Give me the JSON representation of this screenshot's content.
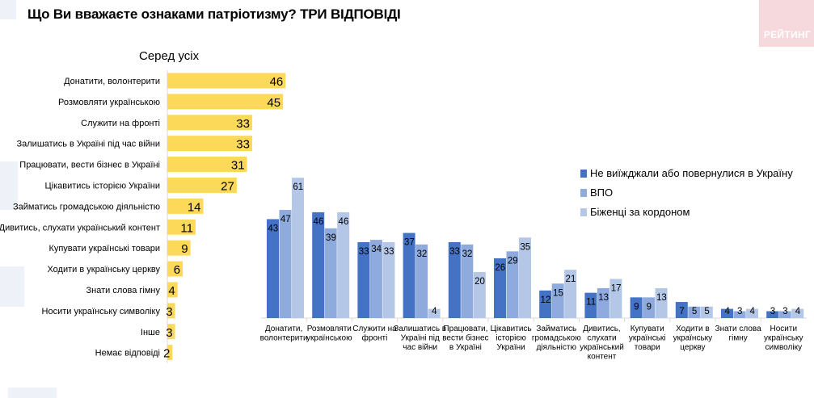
{
  "title": "Що Ви вважаєте ознаками патріотизму? ТРИ ВІДПОВІДІ",
  "brand": "РЕЙТИНГ",
  "colors": {
    "left_bar": "#fdd95a",
    "series": [
      "#4472c4",
      "#8faadc",
      "#b4c7e7"
    ]
  },
  "chart_data": [
    {
      "type": "bar",
      "orientation": "horizontal",
      "title": "Серед усіх",
      "categories": [
        "Донатити, волонтерити",
        "Розмовляти українською",
        "Служити на фронті",
        "Залишатись в Україні під час війни",
        "Працювати, вести бізнес в Україні",
        "Цікавитись історією України",
        "Займатись громадською діяльністю",
        "Дивитись, слухати український контент",
        "Купувати українські товари",
        "Ходити в українську церкву",
        "Знати слова гімну",
        "Носити українську символіку",
        "Інше",
        "Немає відповіді"
      ],
      "values": [
        46,
        45,
        33,
        33,
        31,
        27,
        14,
        11,
        9,
        6,
        4,
        3,
        3,
        2
      ]
    },
    {
      "type": "bar",
      "orientation": "vertical",
      "categories": [
        "Донатити, волонтерити",
        "Розмовляти українською",
        "Служити на фронті",
        "Залишатись в Україні під час війни",
        "Працювати, вести бізнес в Україні",
        "Цікавитись історією України",
        "Займатись громадською діяльністю",
        "Дивитись, слухати український контент",
        "Купувати українські товари",
        "Ходити в українську церкву",
        "Знати слова гімну",
        "Носити українську символіку"
      ],
      "series": [
        {
          "name": "Не виїжджали або повернулися в Україну",
          "values": [
            43,
            46,
            33,
            37,
            33,
            26,
            12,
            11,
            9,
            7,
            4,
            3
          ]
        },
        {
          "name": "ВПО",
          "values": [
            47,
            39,
            34,
            32,
            32,
            29,
            15,
            13,
            9,
            5,
            3,
            3
          ]
        },
        {
          "name": "Біженці за кордоном",
          "values": [
            61,
            46,
            33,
            4,
            20,
            35,
            21,
            17,
            13,
            5,
            4,
            4
          ]
        }
      ],
      "legend_position": "top-right"
    }
  ]
}
